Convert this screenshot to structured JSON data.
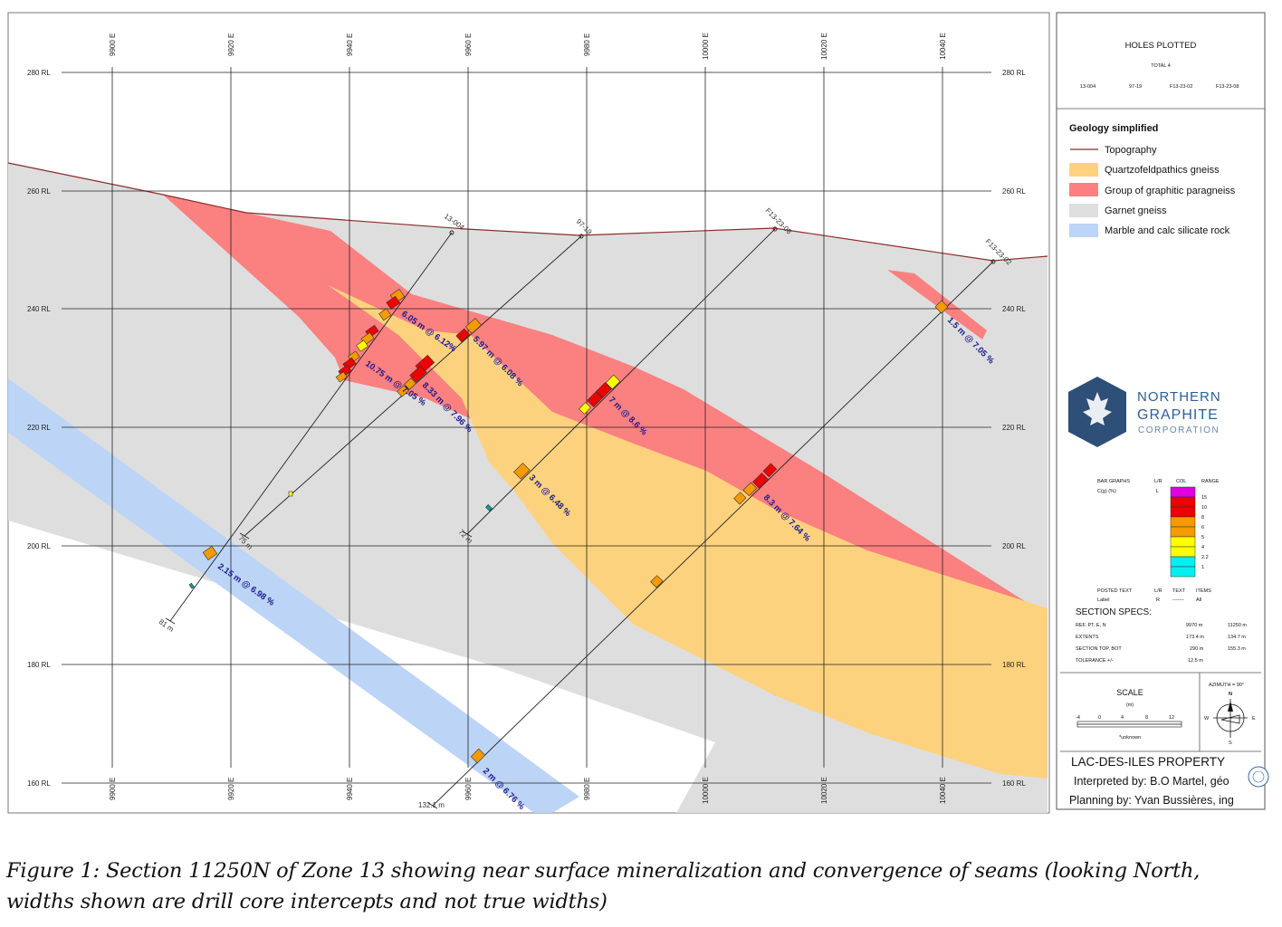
{
  "section": {
    "easting_labels": [
      "9900 E",
      "9920 E",
      "9940 E",
      "9960 E",
      "9980 E",
      "10000 E",
      "10020 E",
      "10040 E"
    ],
    "rl_labels": [
      "280 RL",
      "260 RL",
      "240 RL",
      "220 RL",
      "200 RL",
      "180 RL",
      "160 RL"
    ],
    "holes": [
      {
        "name": "13-004",
        "depth": "81 m"
      },
      {
        "name": "97-19",
        "depth": "75 m"
      },
      {
        "name": "F13-23-08",
        "depth": "72 m"
      },
      {
        "name": "F13-23-02",
        "depth": "132.1 m"
      }
    ],
    "intercepts": [
      "6.05 m @ 6.12%",
      "10.75 m @ 7.05 %",
      "8.33 m @ 7.96 %",
      "5.97 m @ 6.08 %",
      "7 m @ 8.6 %",
      "3 m @ 6.48 %",
      "8.3 m @ 7.64 %",
      "1.5 m @ 7.05 %",
      "2.15 m @ 6.98 %",
      "2 m @ 6.76 %"
    ]
  },
  "panel": {
    "holes_plotted_title": "HOLES PLOTTED",
    "total": "TOTAL 4",
    "hole_list": [
      "13-004",
      "97-19",
      "F13-23-02",
      "F13-23-08"
    ],
    "geology_title": "Geology simplified",
    "legend": [
      {
        "label": "Topography",
        "color": "#8b2a2a",
        "kind": "line"
      },
      {
        "label": "Quartzofeldpathics gneiss",
        "color": "#fdd27e",
        "kind": "box"
      },
      {
        "label": "Group of graphitic paragneiss",
        "color": "#fb8080",
        "kind": "box"
      },
      {
        "label": "Garnet gneiss",
        "color": "#dedede",
        "kind": "box"
      },
      {
        "label": "Marble and calc silicate rock",
        "color": "#bcd4f6",
        "kind": "box"
      }
    ],
    "logo": {
      "line1": "NORTHERN",
      "line2": "GRAPHITE",
      "line3": "CORPORATION"
    },
    "bar_graphs": {
      "header": [
        "BAR GRAPHS",
        "L/R",
        "COL",
        "RANGE"
      ],
      "row": [
        "C(g) (%)",
        "L"
      ],
      "ranges": [
        "15",
        "10",
        "8",
        "6",
        "5",
        "4",
        "2.2",
        "1"
      ],
      "colors": [
        "#e000e0",
        "#ee0000",
        "#ee0000",
        "#f59a00",
        "#f59a00",
        "#ffff00",
        "#ffff00",
        "#00f0f0",
        "#00f0f0"
      ]
    },
    "posted_text": {
      "header": [
        "POSTED TEXT",
        "L/R",
        "TEXT",
        "ITEMS"
      ],
      "row": [
        "Label",
        "R",
        "-------",
        "All"
      ]
    },
    "section_specs": {
      "title": "SECTION  SPECS:",
      "rows": [
        [
          "REF. PT.  E, N",
          "9970 m",
          "11250 m"
        ],
        [
          "EXTENTS",
          "173.4 m",
          "134.7 m"
        ],
        [
          "SECTION TOP, BOT",
          "290 m",
          "155.3 m"
        ],
        [
          "TOLERANCE  +/-",
          "12.5 m",
          ""
        ]
      ]
    },
    "scale": {
      "title": "SCALE",
      "unit": "(m)",
      "ticks": [
        "-4",
        "0",
        "4",
        "8",
        "12"
      ],
      "note": "*unknown"
    },
    "azimuth": {
      "label": "AZIMUTH = 90°",
      "N": "N",
      "S": "S",
      "E": "E",
      "W": "W"
    },
    "property": "LAC-DES-ILES PROPERTY",
    "interpreted": "Interpreted by: B.O Martel, géo",
    "planning": "Planning by: Yvan Bussières, ing"
  },
  "caption": {
    "line1": "Figure 1: Section 11250N of Zone 13 showing near surface mineralization and convergence of seams (looking North,",
    "line2": "widths shown are drill core intercepts and not true widths)"
  }
}
